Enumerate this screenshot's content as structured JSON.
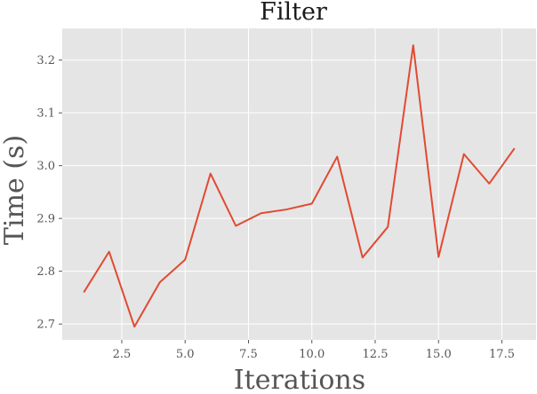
{
  "chart_data": {
    "type": "line",
    "title": "Filter",
    "xlabel": "Iterations",
    "ylabel": "Time (s)",
    "xlim": [
      0.15,
      18.85
    ],
    "ylim": [
      2.67,
      3.26
    ],
    "xticks": [
      2.5,
      5.0,
      7.5,
      10.0,
      12.5,
      15.0,
      17.5
    ],
    "xtick_labels": [
      "2.5",
      "5.0",
      "7.5",
      "10.0",
      "12.5",
      "15.0",
      "17.5"
    ],
    "yticks": [
      2.7,
      2.8,
      2.9,
      3.0,
      3.1,
      3.2
    ],
    "ytick_labels": [
      "2.7",
      "2.8",
      "2.9",
      "3.0",
      "3.1",
      "3.2"
    ],
    "grid": true,
    "background": "#e5e5e5",
    "series": [
      {
        "color": "#e24a33",
        "x": [
          1,
          2,
          3,
          4,
          5,
          6,
          7,
          8,
          9,
          10,
          11,
          12,
          13,
          14,
          15,
          16,
          17,
          18
        ],
        "y": [
          2.76,
          2.837,
          2.695,
          2.779,
          2.822,
          2.985,
          2.886,
          2.91,
          2.917,
          2.928,
          3.017,
          2.826,
          2.884,
          3.228,
          2.827,
          3.022,
          2.966,
          3.033
        ]
      }
    ]
  }
}
